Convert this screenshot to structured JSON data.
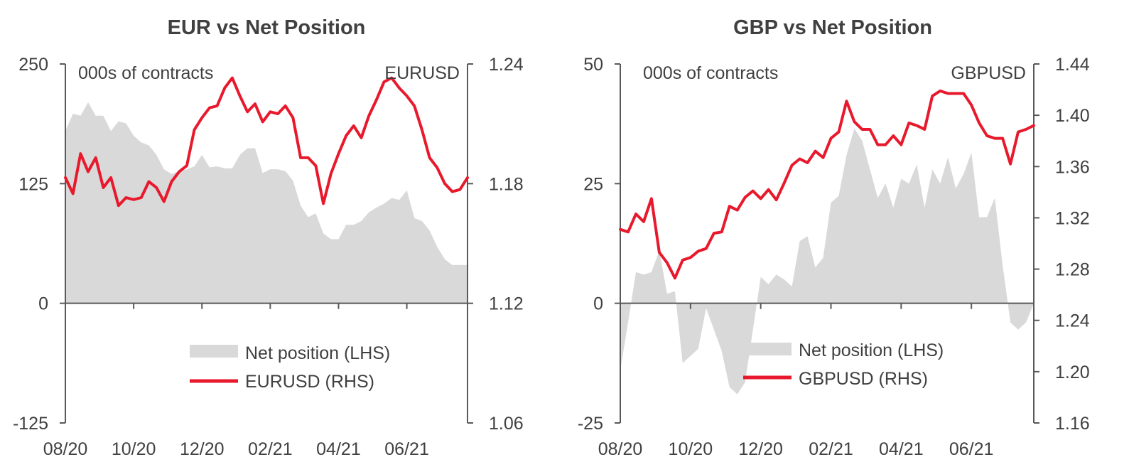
{
  "colors": {
    "area": "#d9d9d9",
    "line": "#e8192c",
    "axis": "#595959",
    "text": "#404040"
  },
  "chart_data": [
    {
      "type": "area+line",
      "title": "EUR  vs Net Position",
      "left_axis_note": "000s of contracts",
      "right_axis_note": "EURUSD",
      "left_ylim": [
        -125,
        250
      ],
      "left_ticks": [
        "250",
        "125",
        "0",
        "-125"
      ],
      "left_tick_values": [
        250,
        125,
        0,
        -125
      ],
      "right_ylim": [
        1.06,
        1.24
      ],
      "right_ticks": [
        "1.24",
        "1.18",
        "1.12",
        "1.06"
      ],
      "right_tick_values": [
        1.24,
        1.18,
        1.12,
        1.06
      ],
      "x_tick_labels": [
        "08/20",
        "10/20",
        "12/20",
        "02/21",
        "04/21",
        "06/21"
      ],
      "x_tick_index": [
        0,
        9,
        18,
        27,
        36,
        45
      ],
      "x_count": 54,
      "series": [
        {
          "name": "Net position (LHS)",
          "type": "area",
          "values": [
            180,
            198,
            196,
            210,
            196,
            196,
            180,
            190,
            188,
            175,
            168,
            165,
            155,
            140,
            135,
            138,
            140,
            143,
            155,
            142,
            143,
            141,
            141,
            155,
            162,
            162,
            136,
            140,
            140,
            138,
            128,
            102,
            90,
            94,
            73,
            67,
            67,
            82,
            82,
            86,
            95,
            100,
            104,
            110,
            108,
            118,
            89,
            86,
            76,
            59,
            46,
            40,
            40,
            40
          ]
        },
        {
          "name": "EURUSD (RHS)",
          "type": "line",
          "values": [
            1.183,
            1.175,
            1.195,
            1.186,
            1.193,
            1.178,
            1.183,
            1.169,
            1.173,
            1.172,
            1.173,
            1.181,
            1.178,
            1.171,
            1.181,
            1.186,
            1.189,
            1.207,
            1.213,
            1.218,
            1.219,
            1.228,
            1.233,
            1.224,
            1.216,
            1.22,
            1.211,
            1.216,
            1.215,
            1.219,
            1.213,
            1.193,
            1.193,
            1.189,
            1.17,
            1.185,
            1.195,
            1.204,
            1.209,
            1.203,
            1.214,
            1.222,
            1.231,
            1.233,
            1.228,
            1.224,
            1.219,
            1.207,
            1.193,
            1.188,
            1.18,
            1.176,
            1.177,
            1.183
          ]
        }
      ]
    },
    {
      "type": "area+line",
      "title": "GBP  vs Net Position",
      "left_axis_note": "000s of contracts",
      "right_axis_note": "GBPUSD",
      "left_ylim": [
        -25,
        50
      ],
      "left_ticks": [
        "50",
        "25",
        "0",
        "-25"
      ],
      "left_tick_values": [
        50,
        25,
        0,
        -25
      ],
      "right_ylim": [
        1.16,
        1.44
      ],
      "right_ticks": [
        "1.44",
        "1.40",
        "1.36",
        "1.32",
        "1.28",
        "1.24",
        "1.20",
        "1.16"
      ],
      "right_tick_values": [
        1.44,
        1.4,
        1.36,
        1.32,
        1.28,
        1.24,
        1.2,
        1.16
      ],
      "x_tick_labels": [
        "08/20",
        "10/20",
        "12/20",
        "02/21",
        "04/21",
        "06/21"
      ],
      "x_tick_index": [
        0,
        9,
        18,
        27,
        36,
        45
      ],
      "x_count": 54,
      "series": [
        {
          "name": "Net position (LHS)",
          "type": "area",
          "values": [
            -14,
            -4,
            6.5,
            6,
            6.5,
            11,
            2,
            2.5,
            -12.5,
            -11,
            -9.5,
            -1,
            -5.5,
            -10,
            -17.5,
            -19,
            -16.5,
            -5.5,
            5.5,
            4,
            6,
            5,
            3.5,
            13,
            14,
            7.5,
            9.5,
            21,
            22.5,
            31,
            36.5,
            34,
            28,
            22,
            25,
            20,
            26,
            25,
            29,
            20,
            28,
            25,
            30.5,
            24,
            27,
            31.5,
            18,
            18,
            22,
            8,
            -4,
            -5.5,
            -4,
            0
          ]
        },
        {
          "name": "GBPUSD (RHS)",
          "type": "line",
          "values": [
            1.311,
            1.309,
            1.323,
            1.317,
            1.335,
            1.293,
            1.285,
            1.273,
            1.287,
            1.289,
            1.294,
            1.296,
            1.308,
            1.309,
            1.329,
            1.326,
            1.336,
            1.341,
            1.335,
            1.342,
            1.334,
            1.347,
            1.361,
            1.366,
            1.363,
            1.372,
            1.367,
            1.382,
            1.387,
            1.411,
            1.395,
            1.389,
            1.389,
            1.377,
            1.377,
            1.384,
            1.377,
            1.394,
            1.392,
            1.389,
            1.415,
            1.419,
            1.417,
            1.417,
            1.417,
            1.408,
            1.394,
            1.384,
            1.382,
            1.382,
            1.362,
            1.387,
            1.389,
            1.392
          ]
        }
      ]
    }
  ]
}
